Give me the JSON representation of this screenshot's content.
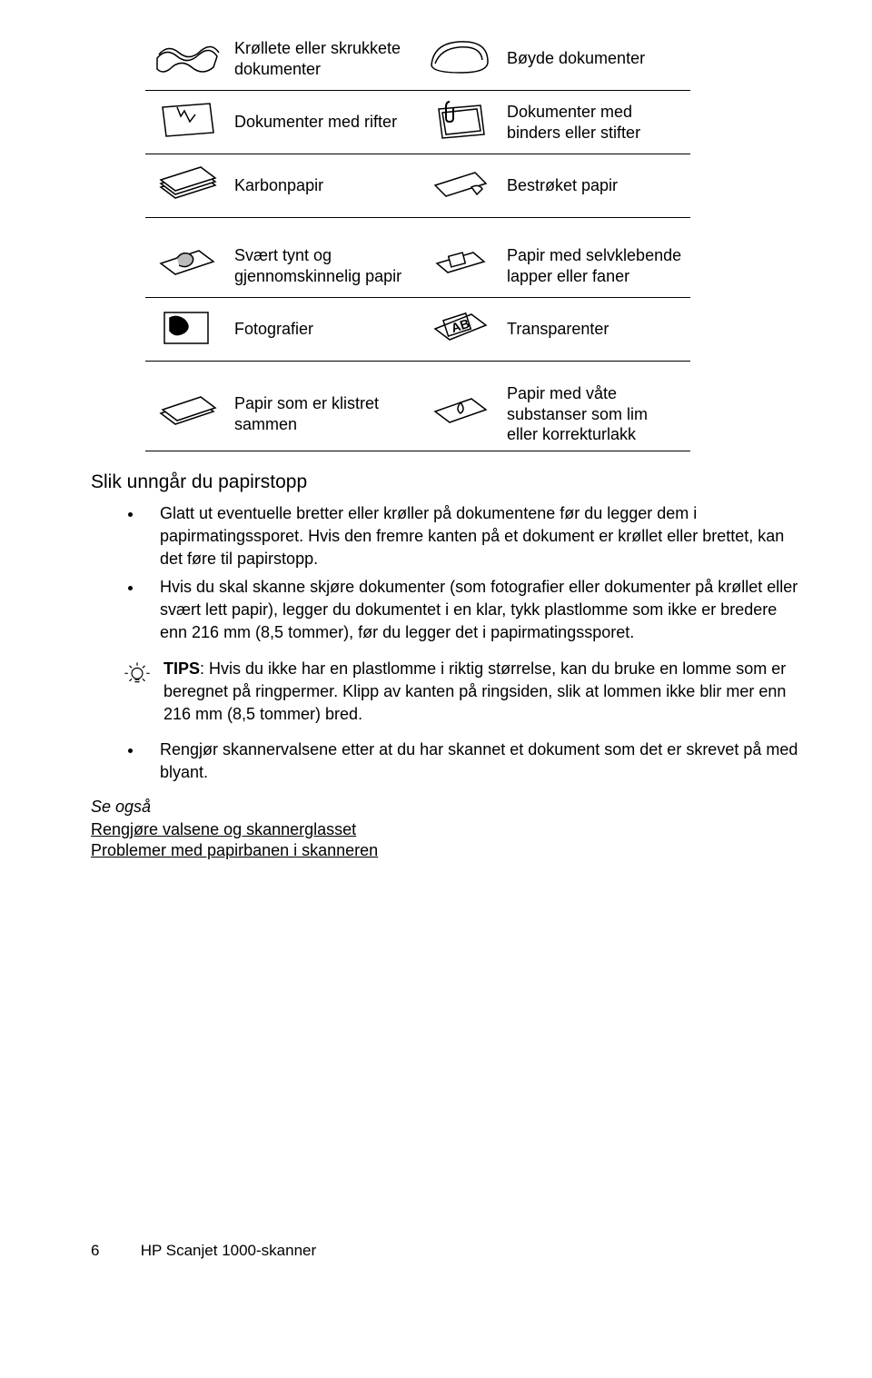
{
  "table_rows": [
    {
      "left": "Krøllete eller skrukkete dokumenter",
      "right": "Bøyde dokumenter",
      "leftIcon": "wrinkled",
      "rightIcon": "curved"
    },
    {
      "left": "Dokumenter med rifter",
      "right": "Dokumenter med binders eller stifter",
      "leftIcon": "torn",
      "rightIcon": "clipped"
    },
    {
      "left": "Karbonpapir",
      "right": "Bestrøket papir",
      "leftIcon": "carbon",
      "rightIcon": "coated"
    }
  ],
  "table2_rows": [
    {
      "left": "Svært tynt og gjennomskinnelig papir",
      "right": "Papir med selvklebende lapper eller faner",
      "leftIcon": "thin",
      "rightIcon": "sticky"
    },
    {
      "left": "Fotografier",
      "right": "Transparenter",
      "leftIcon": "photo",
      "rightIcon": "transparency"
    }
  ],
  "table3_rows": [
    {
      "left": "Papir som er klistret sammen",
      "right": "Papir med våte substanser som lim eller korrekturlakk",
      "leftIcon": "stuck",
      "rightIcon": "wet"
    }
  ],
  "section_heading": "Slik unngår du papirstopp",
  "bullets_top": [
    "Glatt ut eventuelle bretter eller krøller på dokumentene før du legger dem i papirmatingssporet. Hvis den fremre kanten på et dokument er krøllet eller brettet, kan det føre til papirstopp.",
    "Hvis du skal skanne skjøre dokumenter (som fotografier eller dokumenter på krøllet eller svært lett papir), legger du dokumentet i en klar, tykk plastlomme som ikke er bredere enn 216 mm (8,5 tommer), før du legger det i papirmatingssporet."
  ],
  "tips_label": "TIPS",
  "tips_text": ": Hvis du ikke har en plastlomme i riktig størrelse, kan du bruke en lomme som er beregnet på ringpermer. Klipp av kanten på ringsiden, slik at lommen ikke blir mer enn 216 mm (8,5 tommer) bred.",
  "bullets_bottom": [
    "Rengjør skannervalsene etter at du har skannet et dokument som det er skrevet på med blyant."
  ],
  "see_also_label": "Se også",
  "links": [
    "Rengjøre valsene og skannerglasset",
    "Problemer med papirbanen i skanneren"
  ],
  "footer": {
    "page": "6",
    "product": "HP Scanjet 1000-skanner"
  },
  "colors": {
    "text": "#000000",
    "background": "#ffffff",
    "rule": "#000000"
  }
}
